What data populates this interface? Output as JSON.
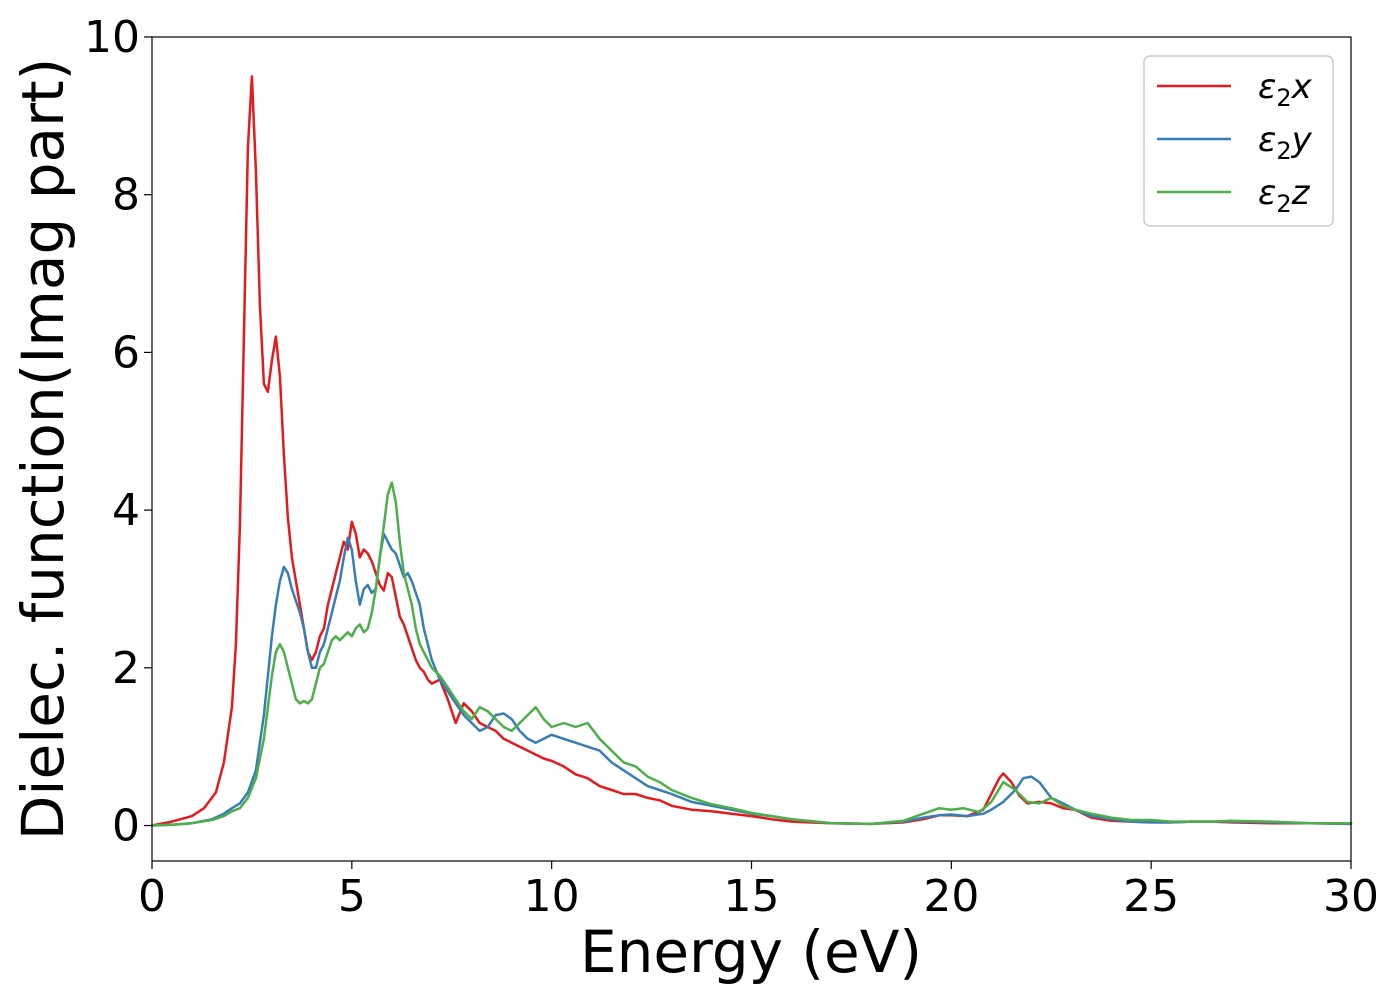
{
  "chart_data": {
    "type": "line",
    "title": "",
    "xlabel": "Energy (eV)",
    "ylabel": "Dielec. function(Imag part)",
    "xlim": [
      0,
      30
    ],
    "ylim": [
      -0.45,
      10
    ],
    "xticks": [
      0,
      5,
      10,
      15,
      20,
      25,
      30
    ],
    "yticks": [
      0,
      2,
      4,
      6,
      8,
      10
    ],
    "grid": false,
    "legend_position": "top-right",
    "series": [
      {
        "name": "ε₂x",
        "legend_main": "ε",
        "legend_sub": "2",
        "legend_suffix": "x",
        "color": "#e41a1c",
        "x": [
          0,
          0.5,
          1.0,
          1.3,
          1.6,
          1.8,
          2.0,
          2.1,
          2.2,
          2.3,
          2.4,
          2.5,
          2.6,
          2.7,
          2.8,
          2.9,
          3.0,
          3.1,
          3.2,
          3.3,
          3.4,
          3.5,
          3.6,
          3.7,
          3.8,
          3.9,
          4.0,
          4.1,
          4.2,
          4.3,
          4.4,
          4.5,
          4.6,
          4.7,
          4.8,
          4.9,
          5.0,
          5.1,
          5.2,
          5.3,
          5.4,
          5.5,
          5.6,
          5.7,
          5.8,
          5.9,
          6.0,
          6.1,
          6.2,
          6.3,
          6.4,
          6.5,
          6.6,
          6.7,
          6.8,
          6.9,
          7.0,
          7.2,
          7.4,
          7.6,
          7.8,
          8.0,
          8.2,
          8.4,
          8.6,
          8.8,
          9.0,
          9.2,
          9.4,
          9.6,
          9.8,
          10.0,
          10.3,
          10.6,
          10.9,
          11.2,
          11.5,
          11.8,
          12.1,
          12.4,
          12.7,
          13.0,
          13.5,
          14.0,
          14.5,
          15.0,
          15.5,
          16.0,
          17.0,
          18.0,
          18.8,
          19.3,
          19.7,
          20.0,
          20.4,
          20.8,
          21.0,
          21.2,
          21.3,
          21.5,
          21.7,
          21.9,
          22.2,
          22.5,
          22.8,
          23.1,
          23.5,
          24.0,
          24.5,
          25.0,
          25.5,
          26.0,
          26.5,
          27.0,
          28.0,
          29.0,
          30.0
        ],
        "y": [
          0,
          0.05,
          0.12,
          0.22,
          0.42,
          0.8,
          1.5,
          2.3,
          3.8,
          6.2,
          8.6,
          9.5,
          8.3,
          6.6,
          5.6,
          5.5,
          5.9,
          6.2,
          5.7,
          4.7,
          3.9,
          3.4,
          3.1,
          2.8,
          2.5,
          2.2,
          2.1,
          2.2,
          2.4,
          2.5,
          2.8,
          3.0,
          3.2,
          3.4,
          3.6,
          3.5,
          3.85,
          3.7,
          3.4,
          3.5,
          3.45,
          3.35,
          3.2,
          3.05,
          2.98,
          3.2,
          3.15,
          2.9,
          2.65,
          2.55,
          2.4,
          2.25,
          2.1,
          2.0,
          1.95,
          1.85,
          1.8,
          1.85,
          1.6,
          1.3,
          1.55,
          1.45,
          1.3,
          1.25,
          1.2,
          1.1,
          1.05,
          1.0,
          0.95,
          0.9,
          0.85,
          0.82,
          0.75,
          0.65,
          0.6,
          0.5,
          0.45,
          0.4,
          0.4,
          0.35,
          0.32,
          0.25,
          0.2,
          0.18,
          0.15,
          0.12,
          0.08,
          0.05,
          0.03,
          0.02,
          0.04,
          0.08,
          0.13,
          0.13,
          0.12,
          0.2,
          0.4,
          0.6,
          0.66,
          0.55,
          0.38,
          0.28,
          0.3,
          0.28,
          0.22,
          0.2,
          0.1,
          0.06,
          0.05,
          0.04,
          0.04,
          0.05,
          0.05,
          0.04,
          0.03,
          0.03,
          0.02
        ]
      },
      {
        "name": "ε₂y",
        "legend_main": "ε",
        "legend_sub": "2",
        "legend_suffix": "y",
        "color": "#377eb8",
        "x": [
          0,
          0.5,
          1.0,
          1.5,
          1.8,
          2.0,
          2.2,
          2.4,
          2.6,
          2.8,
          2.9,
          3.0,
          3.1,
          3.2,
          3.3,
          3.4,
          3.5,
          3.6,
          3.7,
          3.8,
          3.9,
          4.0,
          4.1,
          4.2,
          4.3,
          4.4,
          4.5,
          4.6,
          4.7,
          4.8,
          4.9,
          5.0,
          5.1,
          5.2,
          5.3,
          5.4,
          5.5,
          5.6,
          5.7,
          5.8,
          5.9,
          6.0,
          6.1,
          6.2,
          6.3,
          6.4,
          6.5,
          6.6,
          6.7,
          6.8,
          7.0,
          7.2,
          7.4,
          7.6,
          7.8,
          8.0,
          8.2,
          8.4,
          8.6,
          8.8,
          9.0,
          9.2,
          9.4,
          9.6,
          9.8,
          10.0,
          10.3,
          10.6,
          10.9,
          11.2,
          11.5,
          11.8,
          12.1,
          12.4,
          12.7,
          13.0,
          13.5,
          14.0,
          14.5,
          15.0,
          15.5,
          16.0,
          17.0,
          18.0,
          18.8,
          19.3,
          19.7,
          20.0,
          20.4,
          20.8,
          21.0,
          21.3,
          21.6,
          21.8,
          22.0,
          22.2,
          22.5,
          22.8,
          23.1,
          23.5,
          24.0,
          24.5,
          25.0,
          25.5,
          26.0,
          26.5,
          27.0,
          28.0,
          29.0,
          30.0
        ],
        "y": [
          0,
          0.01,
          0.03,
          0.08,
          0.15,
          0.22,
          0.28,
          0.42,
          0.7,
          1.4,
          1.9,
          2.4,
          2.8,
          3.1,
          3.28,
          3.2,
          3.0,
          2.85,
          2.7,
          2.5,
          2.2,
          2.0,
          2.0,
          2.2,
          2.3,
          2.5,
          2.7,
          2.9,
          3.1,
          3.4,
          3.65,
          3.5,
          3.1,
          2.8,
          3.0,
          3.05,
          2.95,
          3.0,
          3.4,
          3.7,
          3.6,
          3.5,
          3.45,
          3.3,
          3.15,
          3.2,
          3.1,
          2.95,
          2.8,
          2.5,
          2.1,
          1.85,
          1.7,
          1.55,
          1.4,
          1.3,
          1.2,
          1.25,
          1.4,
          1.42,
          1.35,
          1.2,
          1.1,
          1.05,
          1.1,
          1.15,
          1.1,
          1.05,
          1.0,
          0.95,
          0.8,
          0.7,
          0.6,
          0.5,
          0.45,
          0.4,
          0.3,
          0.25,
          0.2,
          0.15,
          0.12,
          0.08,
          0.03,
          0.02,
          0.05,
          0.1,
          0.13,
          0.14,
          0.12,
          0.15,
          0.2,
          0.3,
          0.45,
          0.6,
          0.62,
          0.55,
          0.35,
          0.28,
          0.2,
          0.12,
          0.08,
          0.05,
          0.04,
          0.04,
          0.05,
          0.05,
          0.05,
          0.04,
          0.03,
          0.02
        ]
      },
      {
        "name": "ε₂z",
        "legend_main": "ε",
        "legend_sub": "2",
        "legend_suffix": "z",
        "color": "#4daf4a",
        "x": [
          0,
          0.5,
          1.0,
          1.5,
          1.8,
          2.0,
          2.2,
          2.4,
          2.6,
          2.8,
          2.9,
          3.0,
          3.1,
          3.2,
          3.3,
          3.4,
          3.5,
          3.6,
          3.7,
          3.8,
          3.9,
          4.0,
          4.1,
          4.2,
          4.3,
          4.4,
          4.5,
          4.6,
          4.7,
          4.8,
          4.9,
          5.0,
          5.1,
          5.2,
          5.3,
          5.4,
          5.5,
          5.6,
          5.7,
          5.8,
          5.9,
          6.0,
          6.1,
          6.2,
          6.3,
          6.4,
          6.5,
          6.6,
          6.7,
          6.8,
          7.0,
          7.2,
          7.4,
          7.6,
          7.8,
          8.0,
          8.2,
          8.4,
          8.6,
          8.8,
          9.0,
          9.2,
          9.4,
          9.6,
          9.8,
          10.0,
          10.3,
          10.6,
          10.9,
          11.2,
          11.5,
          11.8,
          12.1,
          12.4,
          12.7,
          13.0,
          13.5,
          14.0,
          14.5,
          15.0,
          15.5,
          16.0,
          17.0,
          18.0,
          18.8,
          19.3,
          19.7,
          20.0,
          20.3,
          20.7,
          21.0,
          21.3,
          21.6,
          21.9,
          22.2,
          22.5,
          22.8,
          23.1,
          23.5,
          24.0,
          24.5,
          25.0,
          25.5,
          26.0,
          26.5,
          27.0,
          28.0,
          29.0,
          30.0
        ],
        "y": [
          0,
          0.01,
          0.03,
          0.07,
          0.12,
          0.18,
          0.22,
          0.35,
          0.6,
          1.1,
          1.5,
          1.9,
          2.2,
          2.3,
          2.2,
          2.0,
          1.8,
          1.6,
          1.55,
          1.58,
          1.55,
          1.6,
          1.8,
          2.0,
          2.05,
          2.2,
          2.35,
          2.4,
          2.35,
          2.4,
          2.45,
          2.4,
          2.5,
          2.55,
          2.45,
          2.5,
          2.7,
          3.0,
          3.4,
          3.8,
          4.2,
          4.35,
          4.1,
          3.6,
          3.2,
          3.0,
          2.8,
          2.5,
          2.3,
          2.2,
          2.0,
          1.9,
          1.75,
          1.6,
          1.45,
          1.35,
          1.5,
          1.45,
          1.35,
          1.25,
          1.2,
          1.3,
          1.4,
          1.5,
          1.35,
          1.25,
          1.3,
          1.25,
          1.3,
          1.1,
          0.95,
          0.8,
          0.75,
          0.62,
          0.55,
          0.45,
          0.35,
          0.27,
          0.22,
          0.16,
          0.12,
          0.08,
          0.03,
          0.02,
          0.06,
          0.15,
          0.22,
          0.2,
          0.22,
          0.17,
          0.3,
          0.55,
          0.45,
          0.3,
          0.28,
          0.35,
          0.25,
          0.2,
          0.15,
          0.1,
          0.07,
          0.07,
          0.05,
          0.05,
          0.05,
          0.06,
          0.05,
          0.03,
          0.03
        ]
      }
    ]
  }
}
